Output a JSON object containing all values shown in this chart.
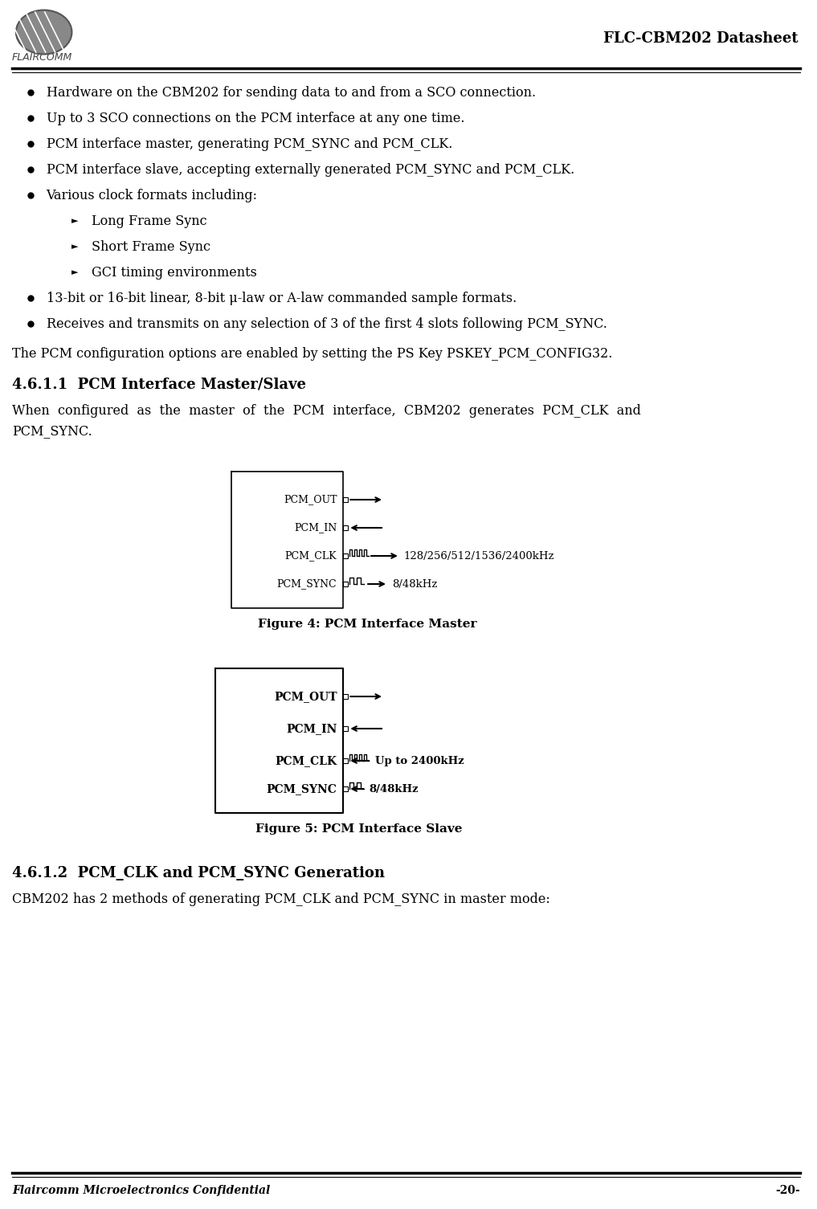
{
  "bg_color": "#ffffff",
  "text_color": "#000000",
  "header_title": "FLC-CBM202 Datasheet",
  "header_logo_text": "FLAIRCOMM",
  "footer_left": "Flaircomm Microelectronics Confidential",
  "footer_right": "-20-",
  "bullet_items": [
    "Hardware on the CBM202 for sending data to and from a SCO connection.",
    "Up to 3 SCO connections on the PCM interface at any one time.",
    "PCM interface master, generating PCM_SYNC and PCM_CLK.",
    "PCM interface slave, accepting externally generated PCM_SYNC and PCM_CLK.",
    "Various clock formats including:"
  ],
  "sub_bullets": [
    "Long Frame Sync",
    "Short Frame Sync",
    "GCI timing environments"
  ],
  "bullet_items2": [
    "13-bit or 16-bit linear, 8-bit μ-law or A-law commanded sample formats.",
    "Receives and transmits on any selection of 3 of the first 4 slots following PCM_SYNC."
  ],
  "para1": "The PCM configuration options are enabled by setting the PS Key PSKEY_PCM_CONFIG32.",
  "section_title": "4.6.1.1  PCM Interface Master/Slave",
  "section_para": "When  configured  as  the  master  of  the  PCM  interface,  CBM202  generates  PCM_CLK  and\nPCM_SYNC.",
  "fig4_caption": "Figure 4: PCM Interface Master",
  "fig5_caption": "Figure 5: PCM Interface Slave",
  "fig4_pins": [
    "PCM_OUT",
    "PCM_IN",
    "PCM_CLK",
    "PCM_SYNC"
  ],
  "fig4_arrows": [
    "right",
    "left",
    "right_clk",
    "right_sync"
  ],
  "fig4_labels": [
    "",
    "",
    "128/256/512/1536/2400kHz",
    "8/48kHz"
  ],
  "fig5_pins": [
    "PCM_OUT",
    "PCM_IN",
    "PCM_CLK",
    "PCM_SYNC"
  ],
  "fig5_arrows": [
    "right",
    "left",
    "left_clk",
    "left_sync"
  ],
  "fig5_labels": [
    "",
    "",
    "Up to 2400kHz",
    "8/48kHz"
  ],
  "section2_title": "4.6.1.2  PCM_CLK and PCM_SYNC Generation",
  "section2_para": "CBM202 has 2 methods of generating PCM_CLK and PCM_SYNC in master mode:"
}
